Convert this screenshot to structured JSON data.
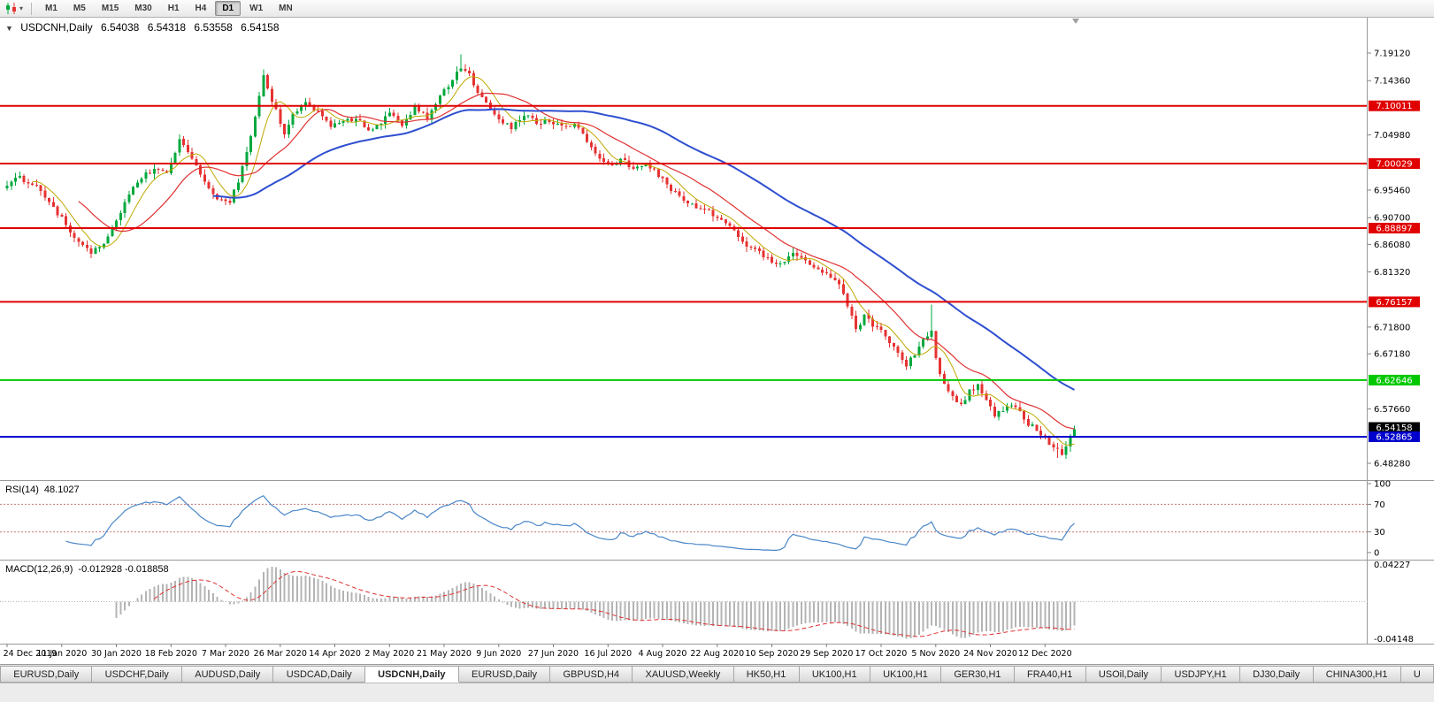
{
  "colors": {
    "candle_up": "#00a83c",
    "candle_down": "#e63232",
    "ma_fast": "#bfa800",
    "ma_mid": "#e03030",
    "ma_slow": "#2e4fd0",
    "rsi_line": "#4a86c8",
    "rsi_level": "#c87878",
    "macd_hist": "#b4b4b4",
    "macd_signal": "#e03030",
    "hline_red": "#e00000",
    "hline_green": "#00c800",
    "hline_blue": "#0000cc",
    "bid_tag_bg": "#000000",
    "axis_text": "#000000",
    "separator": "#9a9a9a"
  },
  "toolbar": {
    "chart_icon": "candlestick-chart-icon",
    "dropdown_arrow": "▾",
    "timeframes": [
      {
        "label": "M1"
      },
      {
        "label": "M5"
      },
      {
        "label": "M15"
      },
      {
        "label": "M30"
      },
      {
        "label": "H1"
      },
      {
        "label": "H4"
      },
      {
        "label": "D1",
        "active": true
      },
      {
        "label": "W1"
      },
      {
        "label": "MN"
      }
    ]
  },
  "chart": {
    "symbol_line": {
      "arrow": "▼",
      "title": "USDCNH,Daily",
      "open": "6.54038",
      "high": "6.54318",
      "low": "6.53558",
      "close": "6.54158"
    }
  },
  "chart_data": {
    "type": "candlestick",
    "symbol": "USDCNH",
    "timeframe": "Daily",
    "ohlc_current": {
      "open": 6.54038,
      "high": 6.54318,
      "low": 6.53558,
      "close": 6.54158
    },
    "price_axis": {
      "top": 7.1912,
      "bottom": 6.4828,
      "ticks": [
        {
          "p": 7.1912,
          "t": "7.19120"
        },
        {
          "p": 7.1436,
          "t": "7.14360"
        },
        {
          "p": 7.0498,
          "t": "7.04980"
        },
        {
          "p": 6.9546,
          "t": "6.95460"
        },
        {
          "p": 6.907,
          "t": "6.90700"
        },
        {
          "p": 6.8608,
          "t": "6.86080"
        },
        {
          "p": 6.8132,
          "t": "6.81320"
        },
        {
          "p": 6.718,
          "t": "6.71800"
        },
        {
          "p": 6.6718,
          "t": "6.67180"
        },
        {
          "p": 6.5766,
          "t": "6.57660"
        },
        {
          "p": 6.4828,
          "t": "6.48280"
        }
      ]
    },
    "hlines": [
      {
        "price": 7.10011,
        "label": "7.10011",
        "color": "#e00000"
      },
      {
        "price": 7.00029,
        "label": "7.00029",
        "color": "#e00000"
      },
      {
        "price": 6.88897,
        "label": "6.88897",
        "color": "#e00000"
      },
      {
        "price": 6.76157,
        "label": "6.76157",
        "color": "#e00000"
      },
      {
        "price": 6.62646,
        "label": "6.62646",
        "color": "#00c800"
      },
      {
        "price": 6.52865,
        "label": "6.52865",
        "color": "#0000cc"
      }
    ],
    "current_price": {
      "value": 6.54158,
      "label": "6.54158"
    },
    "dates": [
      "24 Dec 2019",
      "11 Jan 2020",
      "30 Jan 2020",
      "18 Feb 2020",
      "7 Mar 2020",
      "26 Mar 2020",
      "14 Apr 2020",
      "2 May 2020",
      "21 May 2020",
      "9 Jun 2020",
      "27 Jun 2020",
      "16 Jul 2020",
      "4 Aug 2020",
      "22 Aug 2020",
      "10 Sep 2020",
      "29 Sep 2020",
      "17 Oct 2020",
      "5 Nov 2020",
      "24 Nov 2020",
      "12 Dec 2020"
    ],
    "bars_per_label": 13,
    "bar_count": 255,
    "anchors": [
      [
        0,
        6.962
      ],
      [
        3,
        6.976
      ],
      [
        6,
        6.966
      ],
      [
        9,
        6.941
      ],
      [
        13,
        6.906
      ],
      [
        16,
        6.873
      ],
      [
        20,
        6.845
      ],
      [
        23,
        6.866
      ],
      [
        26,
        6.902
      ],
      [
        29,
        6.946
      ],
      [
        32,
        6.976
      ],
      [
        35,
        6.992
      ],
      [
        38,
        6.986
      ],
      [
        41,
        7.04
      ],
      [
        44,
        7.012
      ],
      [
        47,
        6.968
      ],
      [
        50,
        6.94
      ],
      [
        53,
        6.934
      ],
      [
        55,
        6.972
      ],
      [
        57,
        7.02
      ],
      [
        59,
        7.082
      ],
      [
        61,
        7.152
      ],
      [
        62,
        7.128
      ],
      [
        64,
        7.09
      ],
      [
        66,
        7.052
      ],
      [
        68,
        7.088
      ],
      [
        71,
        7.108
      ],
      [
        74,
        7.09
      ],
      [
        77,
        7.064
      ],
      [
        80,
        7.072
      ],
      [
        83,
        7.079
      ],
      [
        86,
        7.058
      ],
      [
        89,
        7.072
      ],
      [
        91,
        7.084
      ],
      [
        94,
        7.068
      ],
      [
        97,
        7.096
      ],
      [
        100,
        7.08
      ],
      [
        103,
        7.118
      ],
      [
        106,
        7.142
      ],
      [
        108,
        7.168
      ],
      [
        110,
        7.152
      ],
      [
        112,
        7.124
      ],
      [
        115,
        7.096
      ],
      [
        117,
        7.08
      ],
      [
        120,
        7.064
      ],
      [
        123,
        7.086
      ],
      [
        126,
        7.07
      ],
      [
        129,
        7.076
      ],
      [
        132,
        7.062
      ],
      [
        135,
        7.072
      ],
      [
        138,
        7.04
      ],
      [
        141,
        7.008
      ],
      [
        143,
        6.996
      ],
      [
        146,
        7.008
      ],
      [
        149,
        6.99
      ],
      [
        152,
        7.002
      ],
      [
        155,
        6.98
      ],
      [
        158,
        6.954
      ],
      [
        161,
        6.938
      ],
      [
        164,
        6.922
      ],
      [
        167,
        6.916
      ],
      [
        169,
        6.91
      ],
      [
        172,
        6.89
      ],
      [
        175,
        6.866
      ],
      [
        178,
        6.85
      ],
      [
        181,
        6.838
      ],
      [
        184,
        6.824
      ],
      [
        187,
        6.842
      ],
      [
        190,
        6.834
      ],
      [
        193,
        6.82
      ],
      [
        195,
        6.812
      ],
      [
        198,
        6.79
      ],
      [
        200,
        6.756
      ],
      [
        202,
        6.714
      ],
      [
        204,
        6.736
      ],
      [
        206,
        6.722
      ],
      [
        208,
        6.71
      ],
      [
        210,
        6.69
      ],
      [
        212,
        6.672
      ],
      [
        214,
        6.654
      ],
      [
        216,
        6.672
      ],
      [
        218,
        6.698
      ],
      [
        220,
        6.715
      ],
      [
        221,
        6.664
      ],
      [
        223,
        6.616
      ],
      [
        225,
        6.598
      ],
      [
        227,
        6.586
      ],
      [
        229,
        6.606
      ],
      [
        231,
        6.618
      ],
      [
        233,
        6.588
      ],
      [
        235,
        6.566
      ],
      [
        237,
        6.576
      ],
      [
        239,
        6.586
      ],
      [
        241,
        6.57
      ],
      [
        243,
        6.552
      ],
      [
        245,
        6.54
      ],
      [
        247,
        6.524
      ],
      [
        249,
        6.508
      ],
      [
        251,
        6.502
      ],
      [
        253,
        6.526
      ],
      [
        254,
        6.5416
      ]
    ],
    "spikes": [
      {
        "i": 61,
        "high": 7.163
      },
      {
        "i": 108,
        "high": 7.189
      },
      {
        "i": 220,
        "high": 6.757
      },
      {
        "i": 250,
        "low": 6.492
      },
      {
        "i": 20,
        "low": 6.837
      }
    ],
    "moving_averages": [
      {
        "period": 7,
        "color": "#bfa800",
        "width": 1
      },
      {
        "period": 18,
        "color": "#e03030",
        "width": 1.2
      },
      {
        "period": 50,
        "color": "#2e4fd0",
        "width": 2
      }
    ],
    "rsi": {
      "label": "RSI(14)",
      "value": "48.1027",
      "period": 14,
      "axis": [
        {
          "v": 100,
          "t": "100"
        },
        {
          "v": 70,
          "t": "70"
        },
        {
          "v": 30,
          "t": "30"
        },
        {
          "v": 0,
          "t": "0"
        }
      ],
      "levels": [
        70,
        30
      ]
    },
    "macd": {
      "label": "MACD(12,26,9)",
      "values": "-0.012928 -0.018858",
      "fast": 12,
      "slow": 26,
      "signal": 9,
      "axis_top": "0.04227",
      "axis_bottom": "-0.04148"
    }
  },
  "tabs": [
    {
      "label": "EURUSD,Daily"
    },
    {
      "label": "USDCHF,Daily"
    },
    {
      "label": "AUDUSD,Daily"
    },
    {
      "label": "USDCAD,Daily"
    },
    {
      "label": "USDCNH,Daily",
      "active": true
    },
    {
      "label": "EURUSD,Daily"
    },
    {
      "label": "GBPUSD,H4"
    },
    {
      "label": "XAUUSD,Weekly"
    },
    {
      "label": "HK50,H1"
    },
    {
      "label": "UK100,H1"
    },
    {
      "label": "UK100,H1"
    },
    {
      "label": "GER30,H1"
    },
    {
      "label": "FRA40,H1"
    },
    {
      "label": "USOil,Daily"
    },
    {
      "label": "USDJPY,H1"
    },
    {
      "label": "DJ30,Daily"
    },
    {
      "label": "CHINA300,H1"
    },
    {
      "label": "U"
    }
  ]
}
